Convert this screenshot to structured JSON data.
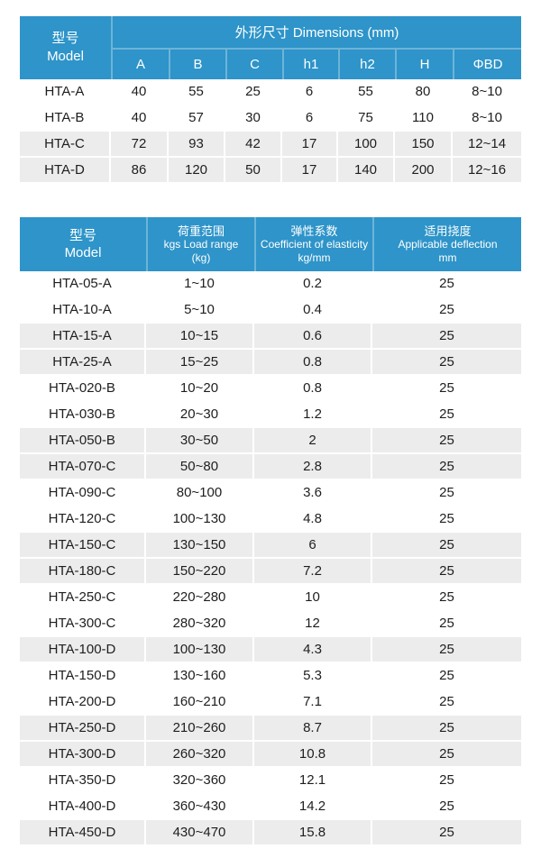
{
  "colors": {
    "header_blue": "#2e94c9",
    "stripe_gray": "#ececec",
    "text_dark": "#1e1e1e"
  },
  "dim_table": {
    "header": {
      "model_zh": "型号",
      "model_en": "Model",
      "group_title": "外形尺寸 Dimensions (mm)",
      "columns": [
        "A",
        "B",
        "C",
        "h1",
        "h2",
        "H",
        "ΦBD"
      ]
    },
    "rows": [
      {
        "model": "HTA-A",
        "values": [
          "40",
          "55",
          "25",
          "6",
          "55",
          "80",
          "8~10"
        ],
        "shaded": false
      },
      {
        "model": "HTA-B",
        "values": [
          "40",
          "57",
          "30",
          "6",
          "75",
          "110",
          "8~10"
        ],
        "shaded": false
      },
      {
        "model": "HTA-C",
        "values": [
          "72",
          "93",
          "42",
          "17",
          "100",
          "150",
          "12~14"
        ],
        "shaded": true
      },
      {
        "model": "HTA-D",
        "values": [
          "86",
          "120",
          "50",
          "17",
          "140",
          "200",
          "12~16"
        ],
        "shaded": true
      }
    ]
  },
  "spec_table": {
    "header": {
      "model": [
        "型号",
        "Model"
      ],
      "load_range": [
        "荷重范围",
        "kgs Load range",
        "(kg)"
      ],
      "elasticity": [
        "弹性系数",
        "Coefficient of elasticity",
        "kg/mm"
      ],
      "deflection": [
        "适用挠度",
        "Applicable deflection",
        "mm"
      ]
    },
    "rows": [
      {
        "model": "HTA-05-A",
        "load_range": "1~10",
        "coefficient": "0.2",
        "deflection": "25",
        "shaded": false
      },
      {
        "model": "HTA-10-A",
        "load_range": "5~10",
        "coefficient": "0.4",
        "deflection": "25",
        "shaded": false
      },
      {
        "model": "HTA-15-A",
        "load_range": "10~15",
        "coefficient": "0.6",
        "deflection": "25",
        "shaded": true
      },
      {
        "model": "HTA-25-A",
        "load_range": "15~25",
        "coefficient": "0.8",
        "deflection": "25",
        "shaded": true
      },
      {
        "model": "HTA-020-B",
        "load_range": "10~20",
        "coefficient": "0.8",
        "deflection": "25",
        "shaded": false
      },
      {
        "model": "HTA-030-B",
        "load_range": "20~30",
        "coefficient": "1.2",
        "deflection": "25",
        "shaded": false
      },
      {
        "model": "HTA-050-B",
        "load_range": "30~50",
        "coefficient": "2",
        "deflection": "25",
        "shaded": true
      },
      {
        "model": "HTA-070-C",
        "load_range": "50~80",
        "coefficient": "2.8",
        "deflection": "25",
        "shaded": true
      },
      {
        "model": "HTA-090-C",
        "load_range": "80~100",
        "coefficient": "3.6",
        "deflection": "25",
        "shaded": false
      },
      {
        "model": "HTA-120-C",
        "load_range": "100~130",
        "coefficient": "4.8",
        "deflection": "25",
        "shaded": false
      },
      {
        "model": "HTA-150-C",
        "load_range": "130~150",
        "coefficient": "6",
        "deflection": "25",
        "shaded": true
      },
      {
        "model": "HTA-180-C",
        "load_range": "150~220",
        "coefficient": "7.2",
        "deflection": "25",
        "shaded": true
      },
      {
        "model": "HTA-250-C",
        "load_range": "220~280",
        "coefficient": "10",
        "deflection": "25",
        "shaded": false
      },
      {
        "model": "HTA-300-C",
        "load_range": "280~320",
        "coefficient": "12",
        "deflection": "25",
        "shaded": false
      },
      {
        "model": "HTA-100-D",
        "load_range": "100~130",
        "coefficient": "4.3",
        "deflection": "25",
        "shaded": true
      },
      {
        "model": "HTA-150-D",
        "load_range": "130~160",
        "coefficient": "5.3",
        "deflection": "25",
        "shaded": false
      },
      {
        "model": "HTA-200-D",
        "load_range": "160~210",
        "coefficient": "7.1",
        "deflection": "25",
        "shaded": false
      },
      {
        "model": "HTA-250-D",
        "load_range": "210~260",
        "coefficient": "8.7",
        "deflection": "25",
        "shaded": true
      },
      {
        "model": "HTA-300-D",
        "load_range": "260~320",
        "coefficient": "10.8",
        "deflection": "25",
        "shaded": true
      },
      {
        "model": "HTA-350-D",
        "load_range": "320~360",
        "coefficient": "12.1",
        "deflection": "25",
        "shaded": false
      },
      {
        "model": "HTA-400-D",
        "load_range": "360~430",
        "coefficient": "14.2",
        "deflection": "25",
        "shaded": false
      },
      {
        "model": "HTA-450-D",
        "load_range": "430~470",
        "coefficient": "15.8",
        "deflection": "25",
        "shaded": true
      }
    ]
  }
}
